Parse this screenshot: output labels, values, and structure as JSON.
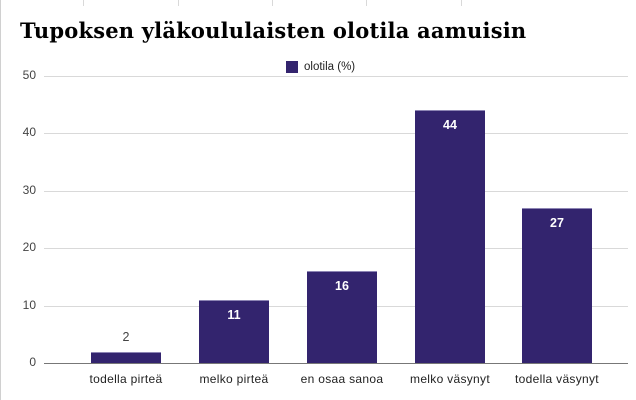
{
  "chart_data": {
    "type": "bar",
    "title": "Tupoksen yläkoululaisten olotila aamuisin",
    "categories": [
      "todella pirteä",
      "melko pirteä",
      "en osaa sanoa",
      "melko väsynyt",
      "todella väsynyt"
    ],
    "series": [
      {
        "name": "olotila (%)",
        "values": [
          2,
          11,
          16,
          44,
          27
        ],
        "color": "#33246e"
      }
    ],
    "values": [
      2,
      11,
      16,
      44,
      27
    ],
    "data_labels": [
      "2",
      "11",
      "16",
      "44",
      "27"
    ],
    "xlabel": "",
    "ylabel": "",
    "ylim": [
      0,
      50
    ],
    "yticks": [
      "0",
      "10",
      "20",
      "30",
      "40",
      "50"
    ],
    "grid": true,
    "legend_position": "top"
  },
  "legend": {
    "label": "olotila (%)"
  },
  "colors": {
    "bar": "#33246e",
    "grid": "#d9d9d9",
    "axis": "#777777"
  }
}
